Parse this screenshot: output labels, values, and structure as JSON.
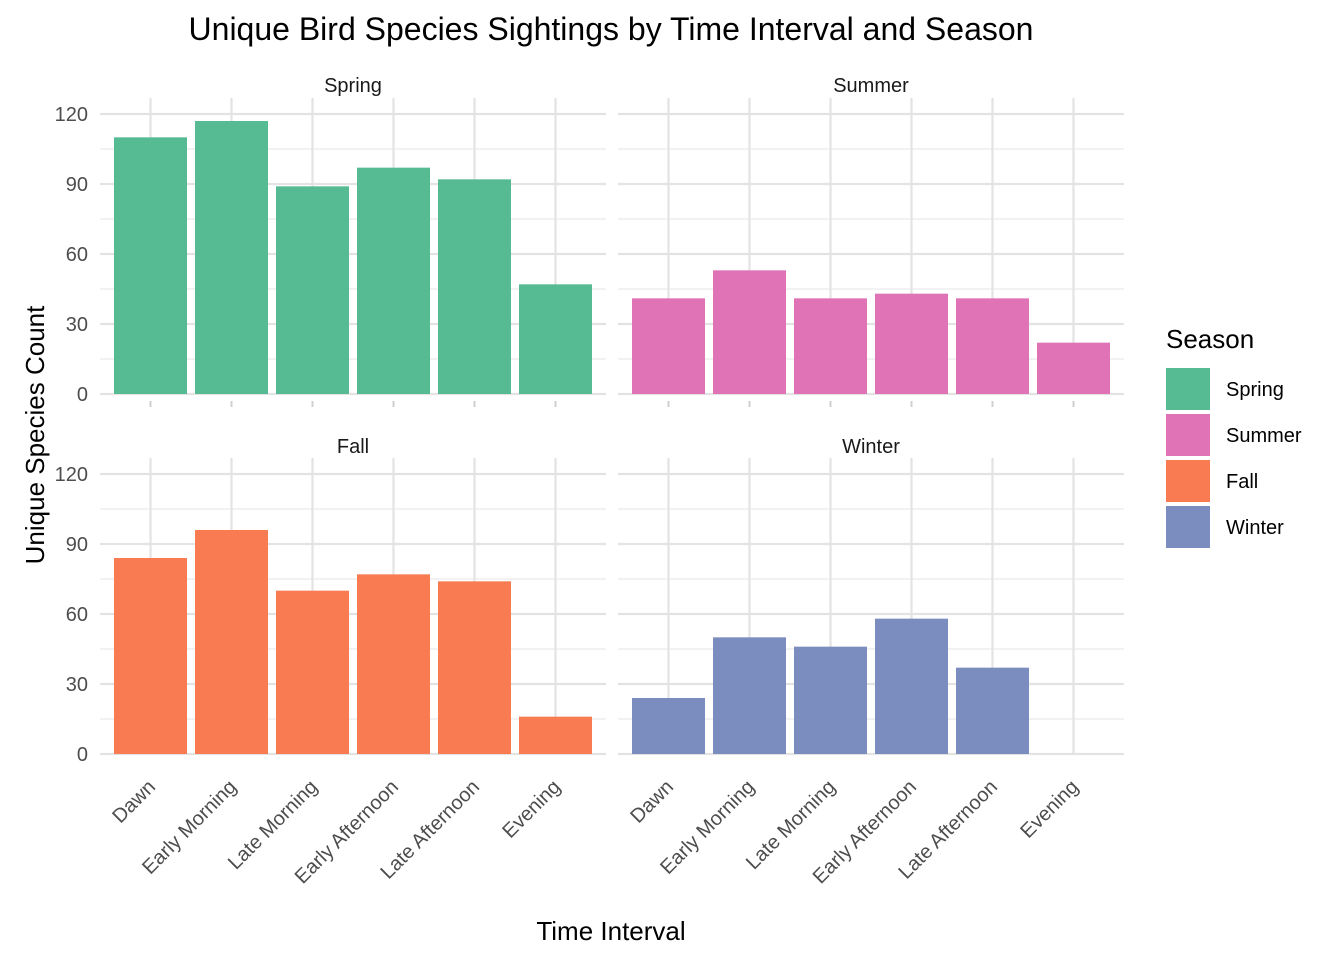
{
  "chart_data": {
    "type": "bar",
    "title": "Unique Bird Species Sightings by Time Interval and Season",
    "xlabel": "Time Interval",
    "ylabel": "Unique Species Count",
    "ylim": [
      0,
      120
    ],
    "yticks": [
      0,
      30,
      60,
      90,
      120
    ],
    "grid": true,
    "categories": [
      "Dawn",
      "Early Morning",
      "Late Morning",
      "Early Afternoon",
      "Late Afternoon",
      "Evening"
    ],
    "legend": {
      "title": "Season",
      "placement": "right"
    },
    "series": [
      {
        "name": "Spring",
        "color": "#56BA93",
        "values": [
          110,
          117,
          89,
          97,
          92,
          47
        ]
      },
      {
        "name": "Summer",
        "color": "#E073B5",
        "values": [
          41,
          53,
          41,
          43,
          41,
          22
        ]
      },
      {
        "name": "Fall",
        "color": "#F87B52",
        "values": [
          84,
          96,
          70,
          77,
          74,
          16
        ]
      },
      {
        "name": "Winter",
        "color": "#7B8DBF",
        "values": [
          24,
          50,
          46,
          58,
          37,
          0
        ]
      }
    ]
  }
}
